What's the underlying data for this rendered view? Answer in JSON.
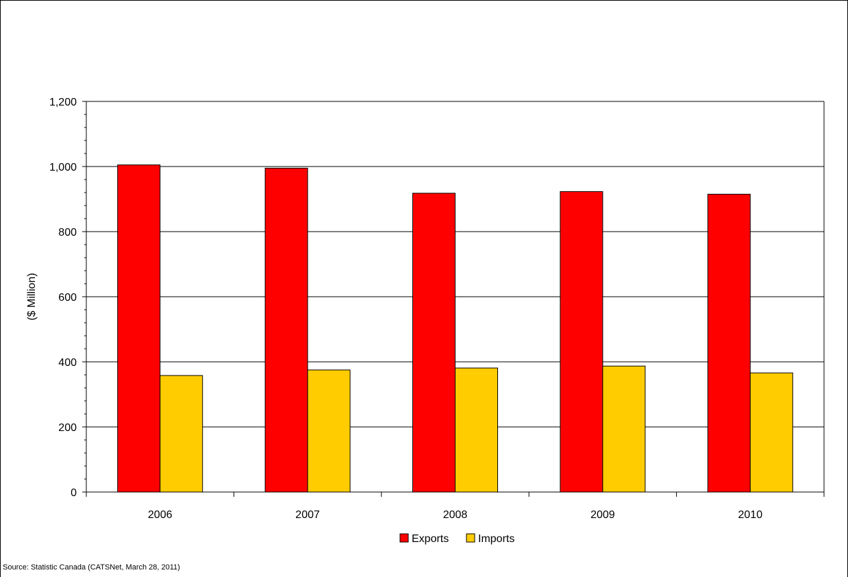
{
  "chart_data": {
    "type": "bar",
    "title": "",
    "xlabel": "",
    "ylabel": "($ Million)",
    "categories": [
      "2006",
      "2007",
      "2008",
      "2009",
      "2010"
    ],
    "series": [
      {
        "name": "Exports",
        "color": "#ff0000",
        "values": [
          1005,
          995,
          918,
          923,
          915
        ]
      },
      {
        "name": "Imports",
        "color": "#ffcc00",
        "values": [
          358,
          375,
          381,
          387,
          366
        ]
      }
    ],
    "ylim": [
      0,
      1200
    ],
    "yticks": [
      0,
      200,
      400,
      600,
      800,
      1000,
      1200
    ],
    "ytick_labels": [
      "0",
      "200",
      "400",
      "600",
      "800",
      "1,000",
      "1,200"
    ],
    "grid": true,
    "legend_position": "bottom-center"
  },
  "footer": {
    "source": "Source: Statistic Canada (CATSNet, March 28, 2011)"
  }
}
